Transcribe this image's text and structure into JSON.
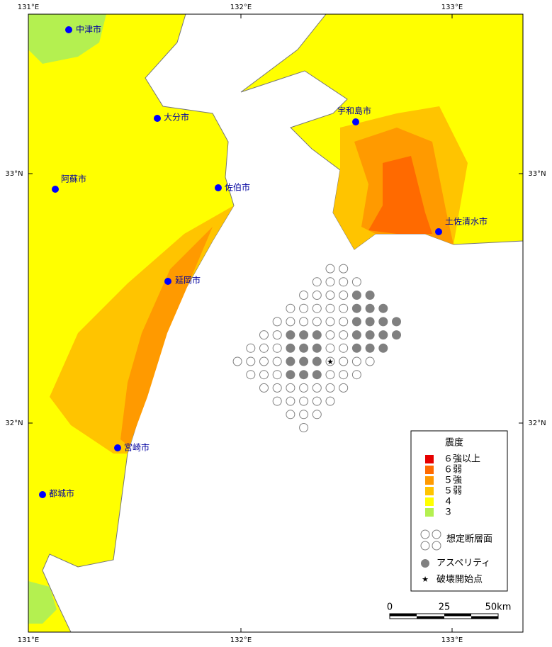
{
  "map": {
    "lon_labels": [
      "131°E",
      "132°E",
      "133°E"
    ],
    "lat_labels": [
      "33°N",
      "32°N"
    ],
    "cities": [
      "中津市",
      "大分市",
      "宇和島市",
      "阿蘇市",
      "佐伯市",
      "土佐清水市",
      "延岡市",
      "宮崎市",
      "都城市"
    ],
    "legend": {
      "title": "震度",
      "intensity": [
        {
          "label": "６強以上",
          "color": "#e60000"
        },
        {
          "label": "６弱",
          "color": "#ff6a00"
        },
        {
          "label": "５強",
          "color": "#ff9a00"
        },
        {
          "label": "５弱",
          "color": "#ffc400"
        },
        {
          "label": "４",
          "color": "#ffff00"
        },
        {
          "label": "３",
          "color": "#b4f050"
        }
      ],
      "fault": "想定断層面",
      "asperity": "アスペリティ",
      "hypocenter": "破壊開始点"
    },
    "scale": [
      "0",
      "25",
      "50km"
    ]
  }
}
